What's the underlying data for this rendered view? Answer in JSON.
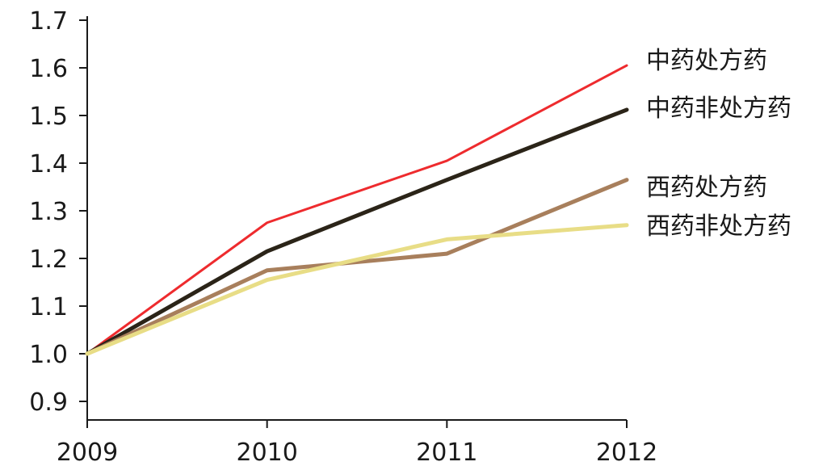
{
  "chart_data": {
    "type": "line",
    "title": "",
    "xlabel": "",
    "ylabel": "",
    "x": [
      "2009",
      "2010",
      "2011",
      "2012"
    ],
    "ylim": [
      0.9,
      1.7
    ],
    "yticks": [
      "0.9",
      "1.0",
      "1.1",
      "1.2",
      "1.3",
      "1.4",
      "1.5",
      "1.6",
      "1.7"
    ],
    "grid": false,
    "legend": "right, labels beside line ends",
    "series": [
      {
        "name": "中药处方药",
        "values": [
          1.0,
          1.275,
          1.405,
          1.605
        ],
        "color": "#ee2b2e"
      },
      {
        "name": "中药非处方药",
        "values": [
          1.0,
          1.215,
          1.365,
          1.512
        ],
        "color": "#2b2418"
      },
      {
        "name": "西药处方药",
        "values": [
          1.0,
          1.175,
          1.21,
          1.365
        ],
        "color": "#a87f5c"
      },
      {
        "name": "西药非处方药",
        "values": [
          1.0,
          1.155,
          1.24,
          1.27
        ],
        "color": "#e8dd86"
      }
    ]
  }
}
